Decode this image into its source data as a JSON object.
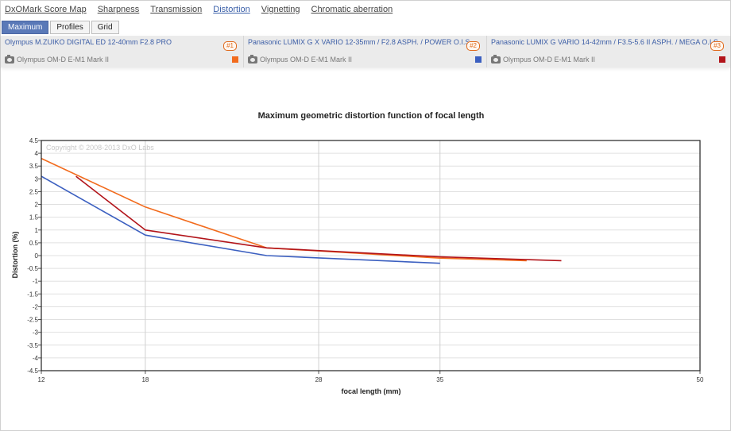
{
  "nav": {
    "items": [
      {
        "label": "DxOMark Score Map",
        "active": false
      },
      {
        "label": "Sharpness",
        "active": false
      },
      {
        "label": "Transmission",
        "active": false
      },
      {
        "label": "Distortion",
        "active": true
      },
      {
        "label": "Vignetting",
        "active": false
      },
      {
        "label": "Chromatic aberration",
        "active": false
      }
    ]
  },
  "subtabs": {
    "maximum": "Maximum",
    "profiles": "Profiles",
    "grid": "Grid"
  },
  "lenses": [
    {
      "name": "Olympus M.ZUIKO DIGITAL ED 12-40mm F2.8 PRO",
      "badge": "#1",
      "camera": "Olympus OM-D E-M1 Mark II",
      "color": "#f26b1d"
    },
    {
      "name": "Panasonic LUMIX G X VARIO 12-35mm / F2.8 ASPH. / POWER O.I.S.",
      "badge": "#2",
      "camera": "Olympus OM-D E-M1 Mark II",
      "color": "#3b5fc0"
    },
    {
      "name": "Panasonic LUMIX G VARIO 14-42mm / F3.5-5.6 II ASPH. / MEGA O.I.S.",
      "badge": "#3",
      "camera": "Olympus OM-D E-M1 Mark II",
      "color": "#b2141a"
    }
  ],
  "chart_data": {
    "type": "line",
    "title": "Maximum geometric distortion function of focal length",
    "xlabel": "focal length (mm)",
    "ylabel": "Distortion (%)",
    "watermark": "Copyright © 2008-2013 DxO Labs",
    "xlim": [
      12,
      50
    ],
    "ylim": [
      -4.5,
      4.5
    ],
    "xticks": [
      12,
      18,
      28,
      35,
      50
    ],
    "yticks": [
      -4.5,
      -4,
      -3.5,
      -3,
      -2.5,
      -2,
      -1.5,
      -1,
      -0.5,
      0,
      0.5,
      1,
      1.5,
      2,
      2.5,
      3,
      3.5,
      4,
      4.5
    ],
    "grid": true,
    "series": [
      {
        "id": "lens1",
        "color": "#f26b1d",
        "x": [
          12,
          18,
          25,
          35,
          40
        ],
        "y": [
          3.8,
          1.9,
          0.3,
          -0.1,
          -0.2
        ]
      },
      {
        "id": "lens2",
        "color": "#3b5fc0",
        "x": [
          12,
          18,
          25,
          35
        ],
        "y": [
          3.1,
          0.8,
          0.0,
          -0.3
        ]
      },
      {
        "id": "lens3",
        "color": "#b2141a",
        "x": [
          14,
          18,
          25,
          35,
          42
        ],
        "y": [
          3.1,
          1.0,
          0.3,
          -0.05,
          -0.2
        ]
      }
    ]
  }
}
